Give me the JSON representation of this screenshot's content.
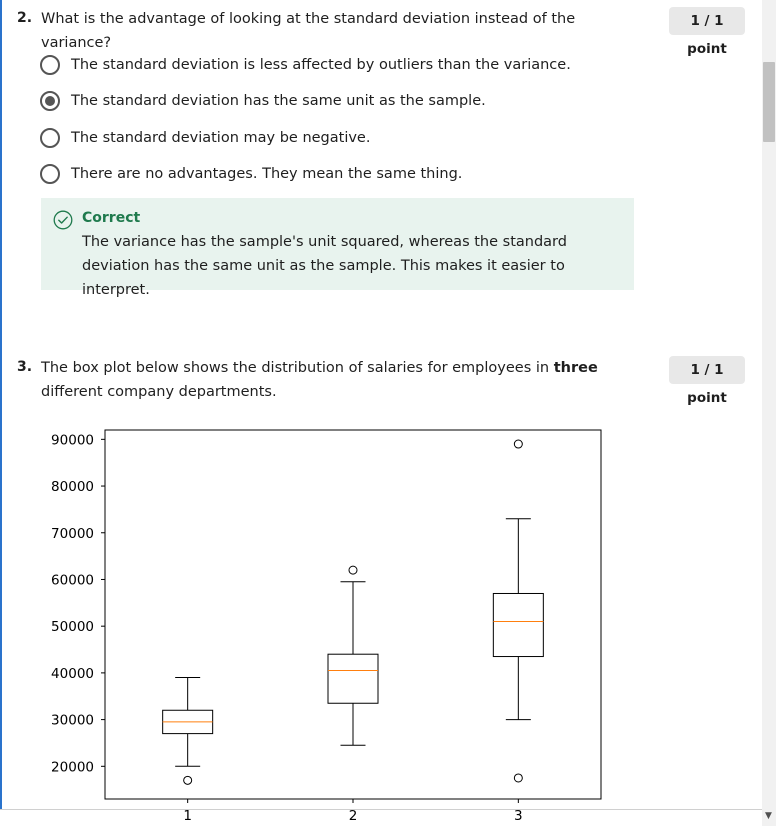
{
  "question2": {
    "number": "2.",
    "text": "What is the advantage of looking at the standard deviation instead of the variance?",
    "points": "1 / 1 point",
    "options": [
      {
        "label": "The standard deviation is less affected by outliers than the variance.",
        "selected": false
      },
      {
        "label": "The standard deviation has the same unit as the sample.",
        "selected": true
      },
      {
        "label": "The standard deviation may be negative.",
        "selected": false
      },
      {
        "label": "There are no advantages. They mean the same thing.",
        "selected": false
      }
    ],
    "feedback": {
      "title": "Correct",
      "icon": "check-circle-icon",
      "text": "The variance has the sample's unit squared, whereas the standard deviation has the same unit as the sample. This makes it easier to interpret."
    }
  },
  "question3": {
    "number": "3.",
    "text_before": "The box plot below shows the distribution of salaries for employees in ",
    "text_bold": "three",
    "text_after": " different company departments.",
    "points": "1 / 1 point"
  },
  "colors": {
    "accent": "#2a73cc",
    "correct": "#1f7a4d",
    "feedback_bg": "#e8f3ee",
    "median": "#ff7f0e"
  },
  "chart_data": {
    "type": "box",
    "title": "",
    "xlabel": "",
    "ylabel": "",
    "ylim": [
      13000,
      92000
    ],
    "yticks": [
      20000,
      30000,
      40000,
      50000,
      60000,
      70000,
      80000,
      90000
    ],
    "categories": [
      "1",
      "2",
      "3"
    ],
    "boxes": [
      {
        "category": "1",
        "whisker_low": 20000,
        "q1": 27000,
        "median": 29500,
        "q3": 32000,
        "whisker_high": 39000,
        "outliers": [
          17000
        ]
      },
      {
        "category": "2",
        "whisker_low": 24500,
        "q1": 33500,
        "median": 40500,
        "q3": 44000,
        "whisker_high": 59500,
        "outliers": [
          62000
        ]
      },
      {
        "category": "3",
        "whisker_low": 30000,
        "q1": 43500,
        "median": 51000,
        "q3": 57000,
        "whisker_high": 73000,
        "outliers": [
          89000,
          17500
        ]
      }
    ]
  }
}
